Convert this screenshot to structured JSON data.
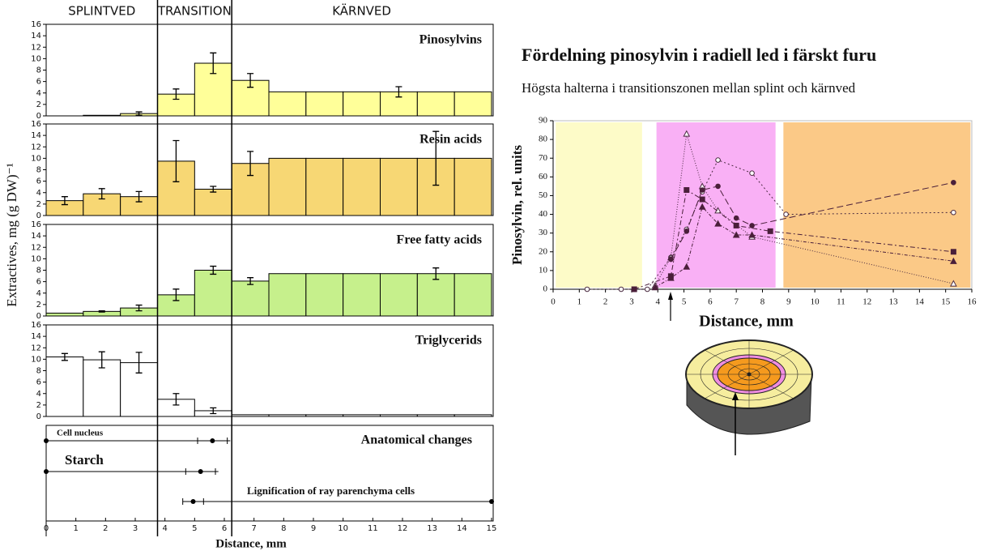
{
  "chart_data": [
    {
      "type": "bar",
      "zones": [
        {
          "label": "SPLINTVED",
          "start": 0,
          "end": 3.75
        },
        {
          "label": "TRANSITION",
          "start": 3.75,
          "end": 6.25
        },
        {
          "label": "KÄRNVED",
          "start": 6.25,
          "end": 15
        }
      ],
      "ylabel": "Extractives, mg (g DW)⁻¹",
      "xlabel": "Distance, mm",
      "bins": [
        0,
        1.25,
        2.5,
        3.75,
        5,
        6.25,
        7.5,
        8.75,
        10,
        11.25,
        12.5,
        13.75,
        15
      ],
      "xlim": [
        0,
        15
      ],
      "xticks": [
        0,
        1,
        2,
        3,
        4,
        5,
        6,
        7,
        8,
        9,
        10,
        11,
        12,
        13,
        14,
        15
      ],
      "ylim": [
        0,
        16
      ],
      "yticks": [
        0,
        2,
        4,
        6,
        8,
        10,
        12,
        14,
        16
      ],
      "panels": [
        {
          "label": "Pinosylvins",
          "color": "#ffff99",
          "values": [
            0,
            0.1,
            0.4,
            3.8,
            9.2,
            6.2,
            4.2,
            4.2,
            4.2,
            4.2,
            4.2,
            4.2
          ],
          "errors": [
            null,
            null,
            0.3,
            0.9,
            1.8,
            1.2,
            null,
            null,
            null,
            0.9,
            null,
            null
          ]
        },
        {
          "label": "Resin acids",
          "color": "#f7d774",
          "values": [
            2.6,
            3.8,
            3.3,
            9.5,
            4.6,
            9.1,
            10,
            10,
            10,
            10,
            10,
            10
          ],
          "errors": [
            0.7,
            0.9,
            0.9,
            3.6,
            0.5,
            2.1,
            null,
            null,
            null,
            null,
            4.7,
            null
          ]
        },
        {
          "label": "Free fatty acids",
          "color": "#c6f08c",
          "values": [
            0.5,
            0.8,
            1.4,
            3.7,
            8,
            6.1,
            7.4,
            7.4,
            7.4,
            7.4,
            7.4,
            7.4
          ],
          "errors": [
            null,
            0.1,
            0.5,
            1,
            0.7,
            0.6,
            null,
            null,
            null,
            null,
            1,
            null
          ]
        },
        {
          "label": "Triglycerids",
          "color": "#ffffff",
          "values": [
            10.4,
            9.9,
            9.4,
            3,
            1,
            0.3,
            0.3,
            0.3,
            0.3,
            0.3,
            0.3,
            0.3
          ],
          "errors": [
            0.6,
            1.4,
            1.8,
            1,
            0.5,
            null,
            null,
            null,
            null,
            null,
            null,
            null
          ]
        }
      ],
      "anatomy": {
        "label": "Anatomical changes",
        "rows": [
          {
            "label": "Cell nucleus",
            "line": [
              0,
              6.2
            ],
            "dots": [
              0,
              5.6
            ],
            "whisker": [
              5.1,
              6.1
            ]
          },
          {
            "label": "Starch",
            "line": [
              0,
              5.8
            ],
            "dots": [
              0,
              5.2
            ],
            "whisker": [
              4.7,
              5.7
            ]
          },
          {
            "label": "Lignification of ray parenchyma cells",
            "line": [
              4.6,
              15
            ],
            "dots": [
              4.95,
              15
            ],
            "whisker": [
              4.6,
              5.3
            ]
          }
        ]
      }
    },
    {
      "type": "line",
      "title": "Fördelning pinosylvin i radiell led i färskt furu",
      "subtitle": "Högsta halterna i transitionszonen mellan splint och kärnved",
      "xlabel": "Distance, mm",
      "ylabel": "Pinosylvin, rel. units",
      "xlim": [
        0,
        16
      ],
      "xticks": [
        0,
        1,
        2,
        3,
        4,
        5,
        6,
        7,
        8,
        9,
        10,
        11,
        12,
        13,
        14,
        15,
        16
      ],
      "ylim": [
        0,
        90
      ],
      "yticks": [
        0,
        10,
        20,
        30,
        40,
        50,
        60,
        70,
        80,
        90
      ],
      "zones": [
        {
          "start": 0.1,
          "end": 3.4,
          "color": "#fdfbc8"
        },
        {
          "start": 3.95,
          "end": 8.5,
          "color": "#f9b0f5"
        },
        {
          "start": 8.8,
          "end": 15.95,
          "color": "#fbc987"
        }
      ],
      "series": [
        {
          "marker": "circle-open",
          "dash": "2,3",
          "color": "#4a2a40",
          "x": [
            1.3,
            2.6,
            3.6,
            4.5,
            5.1,
            5.7,
            6.3,
            7.6,
            8.9,
            15.3
          ],
          "values": [
            0,
            0,
            0,
            17,
            32,
            52,
            69,
            62,
            40,
            41
          ]
        },
        {
          "marker": "triangle-open",
          "dash": "1,2",
          "color": "#4a2a40",
          "x": [
            3.9,
            4.5,
            5.1,
            5.7,
            6.3,
            7.6,
            15.3
          ],
          "values": [
            2,
            17,
            83,
            55,
            42,
            28,
            3
          ]
        },
        {
          "marker": "square",
          "dash": "6,3,2,3",
          "color": "#4a1f3a",
          "x": [
            3.1,
            4.5,
            5.1,
            5.7,
            7,
            8.3,
            15.3
          ],
          "values": [
            0,
            7,
            53,
            48,
            34,
            31,
            20
          ]
        },
        {
          "marker": "circle",
          "dash": "8,4",
          "color": "#4a1f3a",
          "x": [
            4.5,
            5.1,
            5.7,
            6.3,
            7,
            7.6,
            15.3
          ],
          "values": [
            16,
            31,
            53,
            55,
            38,
            34,
            57
          ]
        },
        {
          "marker": "triangle",
          "dash": "4,2,1,2",
          "color": "#4a1f3a",
          "x": [
            3.9,
            4.5,
            5.1,
            5.7,
            6.3,
            7,
            7.6,
            15.3
          ],
          "values": [
            1,
            6,
            12,
            44,
            35,
            29,
            29,
            15
          ]
        }
      ]
    }
  ]
}
